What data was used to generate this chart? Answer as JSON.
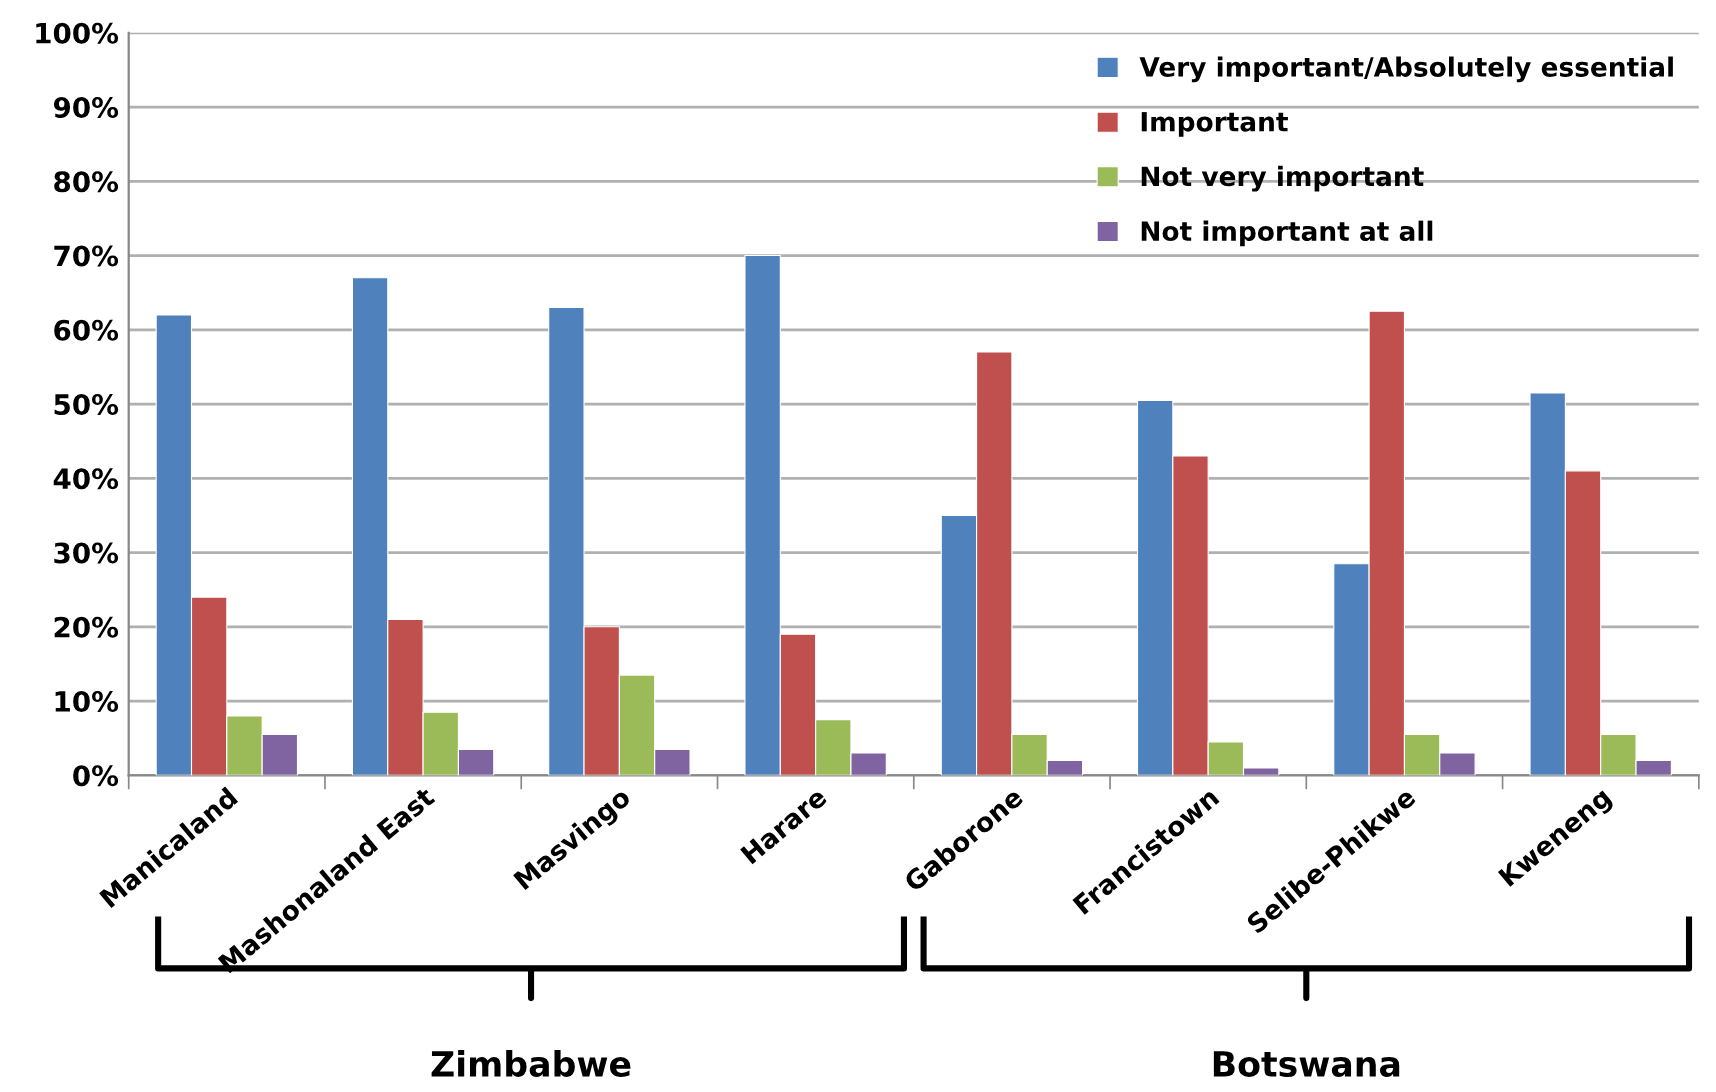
{
  "chart_data": {
    "type": "bar",
    "categories": [
      "Manicaland",
      "Mashonaland East",
      "Masvingo",
      "Harare",
      "Gaborone",
      "Francistown",
      "Selibe-Phikwe",
      "Kweneng"
    ],
    "series": [
      {
        "name": "Very important/Absolutely essential",
        "color": "#4f81bd",
        "values": [
          62,
          67,
          63,
          70,
          35,
          50.5,
          28.5,
          51.5
        ]
      },
      {
        "name": "Important",
        "color": "#c0504d",
        "values": [
          24,
          21,
          20,
          19,
          57,
          43,
          62.5,
          41
        ]
      },
      {
        "name": "Not very important",
        "color": "#9bbb59",
        "values": [
          8,
          8.5,
          13.5,
          7.5,
          5.5,
          4.5,
          5.5,
          5.5
        ]
      },
      {
        "name": "Not important at all",
        "color": "#8064a2",
        "values": [
          5.5,
          3.5,
          3.5,
          3,
          2,
          1,
          3,
          2
        ]
      }
    ],
    "ylim": [
      0,
      100
    ],
    "yticks": [
      {
        "value": 0,
        "label": "0%"
      },
      {
        "value": 10,
        "label": "10%"
      },
      {
        "value": 20,
        "label": "20%"
      },
      {
        "value": 30,
        "label": "30%"
      },
      {
        "value": 40,
        "label": "40%"
      },
      {
        "value": 50,
        "label": "50%"
      },
      {
        "value": 60,
        "label": "60%"
      },
      {
        "value": 70,
        "label": "70%"
      },
      {
        "value": 80,
        "label": "80%"
      },
      {
        "value": 90,
        "label": "90%"
      },
      {
        "value": 100,
        "label": "100%"
      }
    ],
    "grid": "y",
    "legend": "top right",
    "annotations": [
      "Zimbabwe",
      "Botswana"
    ]
  }
}
